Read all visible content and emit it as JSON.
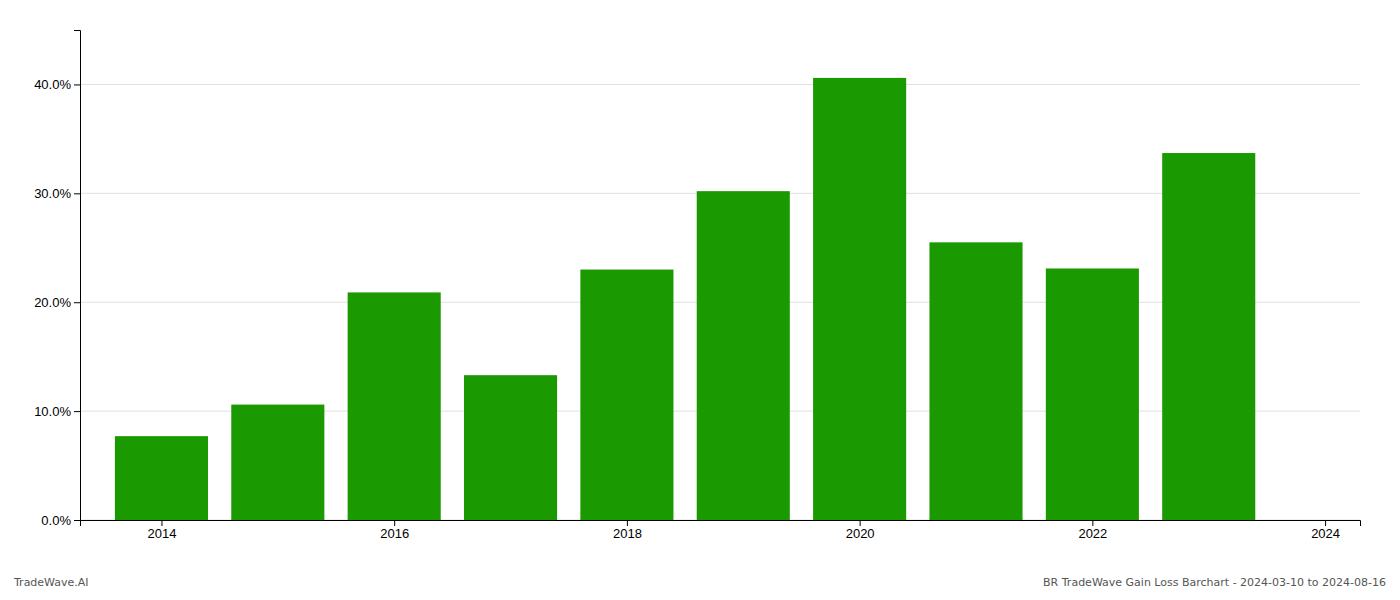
{
  "chart_data": {
    "type": "bar",
    "x": [
      2014,
      2015,
      2016,
      2017,
      2018,
      2019,
      2020,
      2021,
      2022,
      2023
    ],
    "values": [
      0.077,
      0.106,
      0.209,
      0.133,
      0.23,
      0.302,
      0.406,
      0.255,
      0.231,
      0.337
    ],
    "color": "#1a9a00",
    "xlim": [
      2013.3,
      2024.3
    ],
    "xticks": [
      2014,
      2016,
      2018,
      2020,
      2022,
      2024
    ],
    "ylim": [
      0,
      0.45
    ],
    "yticks": [
      {
        "value": 0.0,
        "label": "0.0%"
      },
      {
        "value": 0.1,
        "label": "10.0%"
      },
      {
        "value": 0.2,
        "label": "20.0%"
      },
      {
        "value": 0.3,
        "label": "30.0%"
      },
      {
        "value": 0.4,
        "label": "40.0%"
      }
    ],
    "grid": true,
    "annotations": [
      "TradeWave.AI",
      "BR TradeWave Gain Loss Barchart - 2024-03-10 to 2024-08-16"
    ]
  }
}
